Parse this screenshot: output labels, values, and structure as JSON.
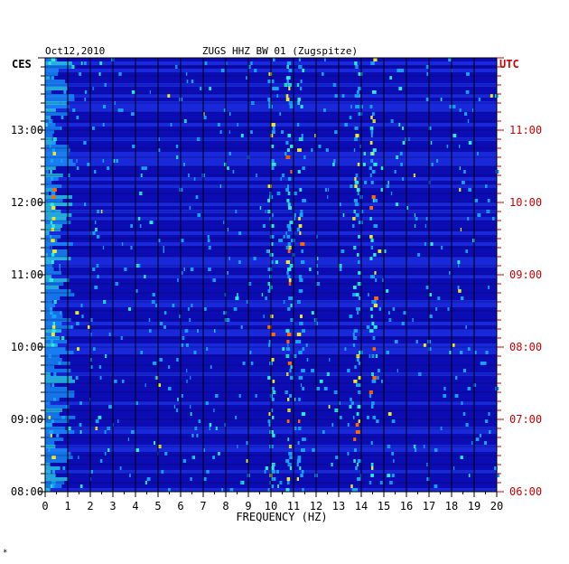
{
  "chart_data": {
    "type": "heatmap",
    "title_date": "Oct12,2010",
    "title_station": "ZUGS HHZ BW 01 (Zugspitze)",
    "left_timezone": "CES",
    "right_timezone": "UTC",
    "xlabel": "FREQUENCY (HZ)",
    "xlim": [
      0,
      20
    ],
    "x_ticks": [
      "0",
      "1",
      "2",
      "3",
      "4",
      "5",
      "6",
      "7",
      "8",
      "9",
      "10",
      "11",
      "12",
      "13",
      "14",
      "15",
      "16",
      "17",
      "18",
      "19",
      "20"
    ],
    "y_ticks_left": [
      "13:00",
      "12:00",
      "11:00",
      "10:00",
      "09:00",
      "08:00"
    ],
    "y_ticks_right": [
      "11:00",
      "10:00",
      "09:00",
      "08:00",
      "07:00",
      "06:00"
    ],
    "time_range_local": [
      "08:00",
      "14:00"
    ],
    "hot_frequency_bands_hz": [
      0.3,
      10.0,
      10.8,
      11.3,
      13.8,
      14.5
    ],
    "colors": {
      "background": "#1010b8",
      "grid": "#000000",
      "left_axis": "#000000",
      "right_axis": "#cc0000",
      "colormap": [
        "#0a0ab0",
        "#1f3cf5",
        "#1aa0ff",
        "#2ee8e8",
        "#e8e830",
        "#ff6a00",
        "#d00000"
      ]
    },
    "footer_mark": "*"
  }
}
